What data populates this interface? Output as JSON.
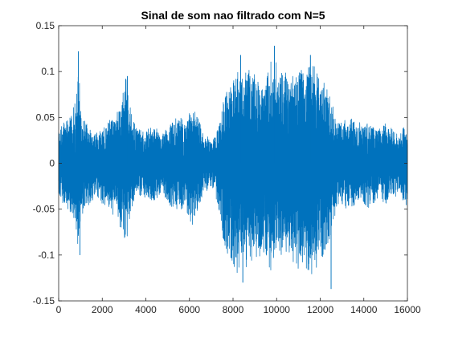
{
  "chart_data": {
    "type": "line",
    "title": "Sinal de som nao filtrado com N=5",
    "xlabel": "",
    "ylabel": "",
    "xlim": [
      0,
      16000
    ],
    "ylim": [
      -0.15,
      0.15
    ],
    "x_ticks": [
      0,
      2000,
      4000,
      6000,
      8000,
      10000,
      12000,
      14000,
      16000
    ],
    "x_tick_labels": [
      "0",
      "2000",
      "4000",
      "6000",
      "8000",
      "10000",
      "12000",
      "14000",
      "16000"
    ],
    "y_ticks": [
      -0.15,
      -0.1,
      -0.05,
      0,
      0.05,
      0.1,
      0.15
    ],
    "y_tick_labels": [
      "-0.15",
      "-0.1",
      "-0.05",
      "0",
      "0.05",
      "0.1",
      "0.15"
    ],
    "grid": false,
    "series_color": "#0072BD",
    "envelope": {
      "x": [
        0,
        200,
        400,
        600,
        800,
        900,
        1000,
        1200,
        1400,
        1600,
        1800,
        2000,
        2200,
        2400,
        2600,
        2800,
        3000,
        3100,
        3200,
        3400,
        3600,
        3800,
        4000,
        4200,
        4400,
        4600,
        4800,
        5000,
        5200,
        5400,
        5600,
        5800,
        6000,
        6200,
        6400,
        6600,
        6800,
        7000,
        7200,
        7400,
        7600,
        7800,
        8000,
        8200,
        8400,
        8600,
        8800,
        9000,
        9200,
        9400,
        9600,
        9800,
        10000,
        10200,
        10400,
        10600,
        10800,
        11000,
        11200,
        11400,
        11600,
        11800,
        12000,
        12200,
        12400,
        12600,
        12800,
        13000,
        13200,
        13400,
        13600,
        13800,
        14000,
        14200,
        14400,
        14600,
        14800,
        15000,
        15200,
        15400,
        15600,
        15800,
        16000
      ],
      "upper": [
        0.035,
        0.045,
        0.05,
        0.055,
        0.07,
        0.12,
        0.065,
        0.05,
        0.04,
        0.035,
        0.035,
        0.04,
        0.045,
        0.05,
        0.055,
        0.06,
        0.085,
        0.095,
        0.075,
        0.05,
        0.04,
        0.035,
        0.035,
        0.04,
        0.04,
        0.035,
        0.035,
        0.04,
        0.045,
        0.05,
        0.05,
        0.045,
        0.055,
        0.06,
        0.05,
        0.035,
        0.03,
        0.025,
        0.03,
        0.045,
        0.075,
        0.085,
        0.09,
        0.1,
        0.095,
        0.1,
        0.105,
        0.1,
        0.095,
        0.09,
        0.1,
        0.12,
        0.11,
        0.105,
        0.1,
        0.095,
        0.1,
        0.105,
        0.1,
        0.11,
        0.115,
        0.1,
        0.095,
        0.09,
        0.08,
        0.06,
        0.045,
        0.045,
        0.05,
        0.05,
        0.045,
        0.045,
        0.04,
        0.045,
        0.04,
        0.035,
        0.04,
        0.045,
        0.04,
        0.035,
        0.03,
        0.04,
        0.045
      ],
      "lower": [
        -0.035,
        -0.045,
        -0.05,
        -0.055,
        -0.07,
        -0.1,
        -0.065,
        -0.05,
        -0.045,
        -0.04,
        -0.04,
        -0.045,
        -0.05,
        -0.055,
        -0.06,
        -0.07,
        -0.08,
        -0.09,
        -0.07,
        -0.05,
        -0.04,
        -0.035,
        -0.04,
        -0.04,
        -0.045,
        -0.035,
        -0.035,
        -0.04,
        -0.05,
        -0.055,
        -0.05,
        -0.05,
        -0.065,
        -0.07,
        -0.05,
        -0.035,
        -0.03,
        -0.025,
        -0.035,
        -0.06,
        -0.095,
        -0.1,
        -0.11,
        -0.12,
        -0.11,
        -0.115,
        -0.12,
        -0.11,
        -0.105,
        -0.1,
        -0.11,
        -0.12,
        -0.11,
        -0.11,
        -0.1,
        -0.1,
        -0.11,
        -0.12,
        -0.115,
        -0.12,
        -0.125,
        -0.115,
        -0.105,
        -0.1,
        -0.09,
        -0.065,
        -0.045,
        -0.045,
        -0.05,
        -0.05,
        -0.045,
        -0.045,
        -0.045,
        -0.05,
        -0.045,
        -0.04,
        -0.04,
        -0.045,
        -0.04,
        -0.04,
        -0.035,
        -0.045,
        -0.05
      ]
    },
    "peaks": [
      {
        "x": 900,
        "y": 0.122
      },
      {
        "x": 3150,
        "y": 0.095
      },
      {
        "x": 8350,
        "y": 0.118
      },
      {
        "x": 9900,
        "y": 0.128
      },
      {
        "x": 11550,
        "y": 0.118
      },
      {
        "x": 980,
        "y": -0.1
      },
      {
        "x": 8450,
        "y": -0.13
      },
      {
        "x": 12500,
        "y": -0.137
      }
    ]
  }
}
